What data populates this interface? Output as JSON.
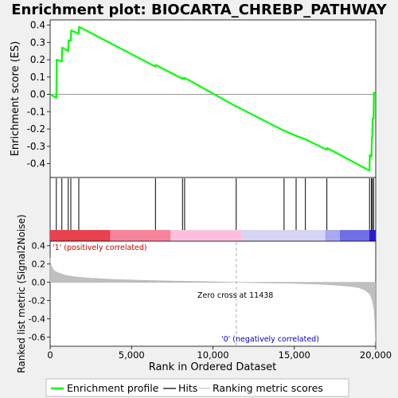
{
  "title": "Enrichment plot: BIOCARTA_CHREBP_PATHWAY",
  "chart_data": [
    {
      "type": "line",
      "ylabel": "Enrichment score (ES)",
      "ylim": [
        -0.48,
        0.43
      ],
      "yticks": [
        0.4,
        0.3,
        0.2,
        0.1,
        0.0,
        -0.1,
        -0.2,
        -0.3,
        -0.4
      ],
      "ytick_labels": [
        "0.4",
        "0.3",
        "0.2",
        "0.1",
        "0.0",
        "-0.1",
        "-0.2",
        "-0.3",
        "-0.4"
      ],
      "xlim": [
        0,
        20000
      ],
      "color": "#00ff00",
      "x": [
        0,
        380,
        400,
        720,
        740,
        1110,
        1130,
        1270,
        1290,
        1760,
        1780,
        6470,
        6490,
        8130,
        8150,
        8260,
        8280,
        11430,
        11450,
        14370,
        14390,
        15110,
        15130,
        15680,
        15700,
        17000,
        17020,
        19620,
        19640,
        19740,
        19760,
        19790,
        19810,
        19870,
        19890,
        19990
      ],
      "y": [
        0.0,
        -0.02,
        0.2,
        0.19,
        0.27,
        0.25,
        0.31,
        0.31,
        0.37,
        0.35,
        0.39,
        0.16,
        0.17,
        0.09,
        0.095,
        0.09,
        0.095,
        -0.07,
        -0.07,
        -0.21,
        -0.21,
        -0.24,
        -0.24,
        -0.26,
        -0.26,
        -0.32,
        -0.31,
        -0.44,
        -0.35,
        -0.36,
        -0.25,
        -0.25,
        -0.14,
        -0.14,
        0.01,
        0.0
      ],
      "hits": [
        380,
        720,
        1110,
        1270,
        1760,
        6470,
        8130,
        8260,
        11430,
        14370,
        15110,
        15680,
        17000,
        19620,
        19740,
        19790,
        19870
      ]
    },
    {
      "type": "area",
      "xlabel": "Rank in Ordered Dataset",
      "ylabel": "Ranked list metric (Signal2Noise)",
      "ylim": [
        -0.7,
        0.45
      ],
      "yticks": [
        0.4,
        0.2,
        0.0,
        -0.2,
        -0.4,
        -0.6
      ],
      "ytick_labels": [
        "0.4",
        "0.2",
        "0.0",
        "-0.2",
        "-0.4",
        "-0.6"
      ],
      "xlim": [
        0,
        20000
      ],
      "xticks": [
        0,
        5000,
        10000,
        15000,
        20000
      ],
      "xtick_labels": [
        "0",
        "5,000",
        "10,000",
        "15,000",
        "20,000"
      ],
      "color": "#c0c0c0",
      "x": [
        0,
        40,
        150,
        300,
        600,
        1000,
        1500,
        2500,
        4000,
        6000,
        8000,
        10000,
        11438,
        13000,
        15000,
        16500,
        17500,
        18500,
        19000,
        19400,
        19650,
        19800,
        19900,
        19960,
        19990
      ],
      "y": [
        0.27,
        0.2,
        0.15,
        0.12,
        0.095,
        0.075,
        0.06,
        0.045,
        0.03,
        0.02,
        0.012,
        0.005,
        0.0,
        -0.006,
        -0.012,
        -0.02,
        -0.03,
        -0.045,
        -0.06,
        -0.09,
        -0.13,
        -0.2,
        -0.3,
        -0.45,
        -0.65
      ],
      "zero_cross_label": "Zero cross at 11438",
      "zero_cross": 11438,
      "pos_label": "'1' (positively correlated)",
      "neg_label": "'0' (negatively correlated)"
    }
  ],
  "heat_band": {
    "segments": [
      {
        "from": 0,
        "to": 3700,
        "color": "#e8424f"
      },
      {
        "from": 3700,
        "to": 7400,
        "color": "#f6849a"
      },
      {
        "from": 7400,
        "to": 11800,
        "color": "#fcc0de"
      },
      {
        "from": 11800,
        "to": 16900,
        "color": "#d5d4f5"
      },
      {
        "from": 16900,
        "to": 17800,
        "color": "#a8a9ef"
      },
      {
        "from": 17800,
        "to": 19600,
        "color": "#6f6fe6"
      },
      {
        "from": 19600,
        "to": 20000,
        "color": "#2c1ad4"
      }
    ]
  },
  "legend": {
    "items": [
      {
        "label": "Enrichment profile",
        "color": "#00ff00"
      },
      {
        "label": "Hits",
        "color": "#000000"
      },
      {
        "label": "Ranking metric scores",
        "color": "#c0c0c0"
      }
    ]
  }
}
